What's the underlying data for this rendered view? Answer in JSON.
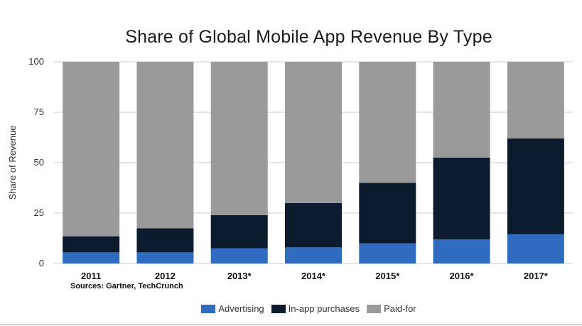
{
  "chart_data": {
    "type": "bar",
    "stacked": true,
    "title": "Share of Global Mobile App Revenue By Type",
    "ylabel": "Share of Revenue",
    "xlabel": "",
    "ylim": [
      0,
      100
    ],
    "yticks": [
      "0",
      "25",
      "50",
      "75",
      "100"
    ],
    "categories": [
      "2011",
      "2012",
      "2013*",
      "2014*",
      "2015*",
      "2016*",
      "2017*"
    ],
    "series": [
      {
        "name": "Advertising",
        "color": "#2f6cc0",
        "values": [
          5.5,
          5.5,
          7.5,
          8,
          10,
          12,
          14.5
        ]
      },
      {
        "name": "In-app purchases",
        "color": "#0c1a2e",
        "values": [
          8,
          12,
          16.5,
          22,
          30,
          40.5,
          47.5
        ]
      },
      {
        "name": "Paid-for",
        "color": "#9a9a9a",
        "values": [
          86.5,
          82.5,
          76,
          70,
          60,
          47.5,
          38
        ]
      }
    ],
    "grid": true,
    "legend_position": "bottom",
    "source": "Sources: Gartner, TechCrunch"
  }
}
